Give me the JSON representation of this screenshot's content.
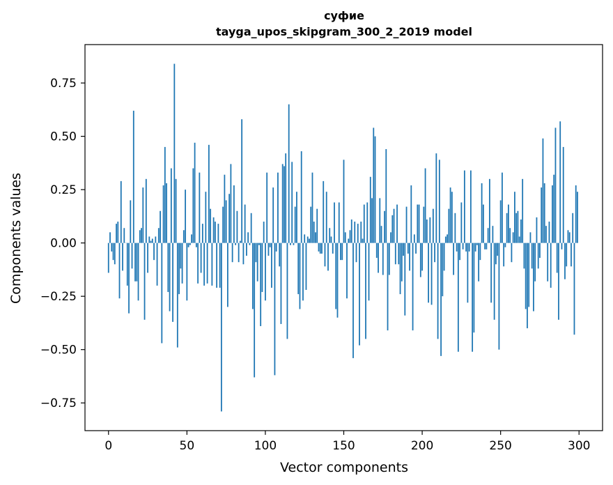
{
  "chart_data": {
    "type": "bar",
    "title": "суфие",
    "subtitle": "tayga_upos_skipgram_300_2_2019 model",
    "xlabel": "Vector components",
    "ylabel": "Components values",
    "xlim": [
      -15,
      315
    ],
    "ylim": [
      -0.88,
      0.93
    ],
    "xticks": [
      0,
      50,
      100,
      150,
      200,
      250,
      300
    ],
    "xtick_labels": [
      "0",
      "50",
      "100",
      "150",
      "200",
      "250",
      "300"
    ],
    "yticks": [
      -0.75,
      -0.5,
      -0.25,
      0.0,
      0.25,
      0.5,
      0.75
    ],
    "ytick_labels": [
      "−0.75",
      "−0.50",
      "−0.25",
      "0.00",
      "0.25",
      "0.50",
      "0.75"
    ],
    "grid": false,
    "bar_color": "#1f77b4",
    "x": "0..299",
    "values": [
      -0.14,
      0.05,
      -0.04,
      -0.08,
      -0.1,
      0.09,
      0.1,
      -0.26,
      0.29,
      -0.13,
      0.07,
      0.0,
      -0.2,
      -0.33,
      0.2,
      -0.12,
      0.62,
      -0.18,
      -0.18,
      -0.27,
      0.06,
      0.07,
      0.26,
      -0.36,
      0.3,
      -0.14,
      0.03,
      0.01,
      0.02,
      -0.08,
      0.03,
      -0.2,
      0.07,
      0.15,
      -0.47,
      0.27,
      0.45,
      0.28,
      -0.23,
      -0.32,
      0.35,
      -0.37,
      0.84,
      0.3,
      -0.49,
      -0.24,
      -0.12,
      -0.19,
      0.06,
      0.25,
      -0.27,
      -0.02,
      -0.01,
      0.04,
      0.35,
      0.47,
      -0.02,
      -0.19,
      0.33,
      -0.14,
      0.09,
      -0.2,
      0.24,
      -0.19,
      0.46,
      0.16,
      -0.2,
      0.12,
      0.1,
      -0.21,
      0.09,
      -0.21,
      -0.79,
      0.17,
      0.32,
      0.2,
      -0.3,
      0.23,
      0.37,
      -0.09,
      0.27,
      -0.01,
      0.15,
      -0.09,
      0.01,
      0.58,
      -0.1,
      0.18,
      -0.06,
      0.05,
      -0.01,
      0.14,
      -0.31,
      -0.63,
      -0.09,
      -0.18,
      -0.01,
      -0.39,
      -0.23,
      0.1,
      -0.27,
      0.33,
      -0.06,
      -0.02,
      -0.21,
      0.26,
      -0.62,
      -0.04,
      0.33,
      -0.11,
      -0.38,
      0.37,
      0.36,
      0.42,
      -0.45,
      0.65,
      -0.01,
      0.38,
      -0.01,
      0.17,
      0.24,
      -0.24,
      -0.31,
      0.43,
      -0.27,
      0.04,
      -0.22,
      0.03,
      0.02,
      0.17,
      0.33,
      0.1,
      0.05,
      0.16,
      -0.04,
      -0.05,
      -0.05,
      0.29,
      -0.11,
      0.24,
      -0.13,
      0.07,
      0.03,
      -0.05,
      0.19,
      -0.31,
      -0.35,
      0.19,
      -0.08,
      -0.08,
      0.39,
      0.05,
      -0.26,
      0.02,
      0.06,
      0.11,
      -0.54,
      0.1,
      -0.09,
      0.09,
      -0.48,
      0.1,
      0.02,
      0.18,
      -0.45,
      0.19,
      -0.27,
      0.31,
      0.21,
      0.54,
      0.5,
      -0.07,
      -0.14,
      0.21,
      0.08,
      -0.15,
      0.15,
      0.44,
      -0.41,
      -0.15,
      0.05,
      0.13,
      0.16,
      -0.1,
      0.18,
      -0.1,
      -0.24,
      -0.18,
      -0.06,
      -0.34,
      0.17,
      -0.05,
      -0.13,
      0.27,
      -0.41,
      0.04,
      -0.05,
      0.18,
      0.18,
      -0.16,
      -0.13,
      0.17,
      0.35,
      0.11,
      -0.28,
      0.12,
      -0.29,
      0.16,
      -0.09,
      0.42,
      -0.45,
      0.39,
      -0.53,
      -0.25,
      -0.13,
      0.03,
      0.04,
      0.16,
      0.26,
      0.24,
      -0.15,
      0.14,
      -0.04,
      -0.51,
      -0.08,
      0.19,
      -0.03,
      0.34,
      -0.04,
      -0.28,
      -0.04,
      0.34,
      -0.51,
      -0.42,
      -0.04,
      -0.01,
      -0.18,
      -0.08,
      0.28,
      0.18,
      -0.03,
      -0.03,
      0.07,
      0.3,
      -0.28,
      0.08,
      -0.36,
      -0.1,
      -0.06,
      -0.5,
      0.2,
      0.33,
      -0.11,
      -0.02,
      0.14,
      0.18,
      0.07,
      -0.09,
      0.05,
      0.24,
      0.14,
      0.15,
      0.03,
      0.11,
      0.3,
      -0.12,
      -0.31,
      -0.4,
      -0.3,
      0.05,
      -0.12,
      -0.32,
      -0.18,
      0.12,
      -0.12,
      -0.07,
      0.26,
      0.49,
      0.28,
      0.08,
      -0.18,
      0.1,
      -0.21,
      0.27,
      0.32,
      0.54,
      -0.14,
      -0.36,
      0.57,
      -0.03,
      0.45,
      -0.17,
      -0.11,
      0.06,
      0.05,
      -0.11,
      0.14,
      -0.43,
      0.27,
      0.24
    ]
  }
}
